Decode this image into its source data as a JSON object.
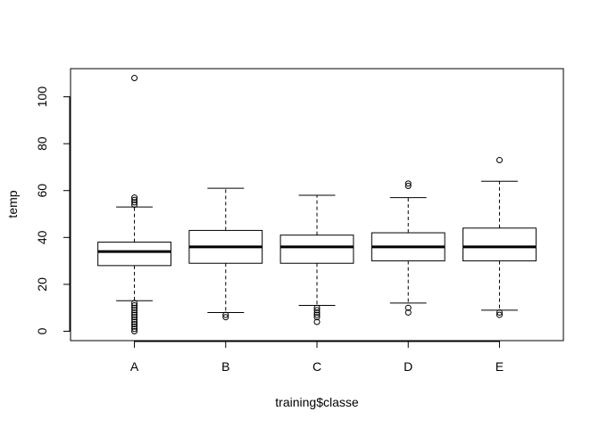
{
  "chart_data": {
    "type": "boxplot",
    "title": "",
    "xlabel": "training$classe",
    "ylabel": "temp",
    "categories": [
      "A",
      "B",
      "C",
      "D",
      "E"
    ],
    "ylim": [
      -4,
      112
    ],
    "yticks": [
      0,
      20,
      40,
      60,
      80,
      100
    ],
    "boxes": [
      {
        "category": "A",
        "lower_whisker": 13,
        "q1": 28,
        "median": 34,
        "q3": 38,
        "upper_whisker": 53,
        "outliers": [
          0,
          1,
          2,
          3,
          4,
          5,
          6,
          7,
          8,
          9,
          10,
          11,
          12,
          54,
          55,
          56,
          57,
          108
        ]
      },
      {
        "category": "B",
        "lower_whisker": 8,
        "q1": 29,
        "median": 36,
        "q3": 43,
        "upper_whisker": 61,
        "outliers": [
          6,
          7
        ]
      },
      {
        "category": "C",
        "lower_whisker": 11,
        "q1": 29,
        "median": 36,
        "q3": 41,
        "upper_whisker": 58,
        "outliers": [
          4,
          6,
          7,
          8,
          9,
          10
        ]
      },
      {
        "category": "D",
        "lower_whisker": 12,
        "q1": 30,
        "median": 36,
        "q3": 42,
        "upper_whisker": 57,
        "outliers": [
          8,
          10,
          62,
          63
        ]
      },
      {
        "category": "E",
        "lower_whisker": 9,
        "q1": 30,
        "median": 36,
        "q3": 44,
        "upper_whisker": 64,
        "outliers": [
          7,
          8,
          73
        ]
      }
    ]
  }
}
